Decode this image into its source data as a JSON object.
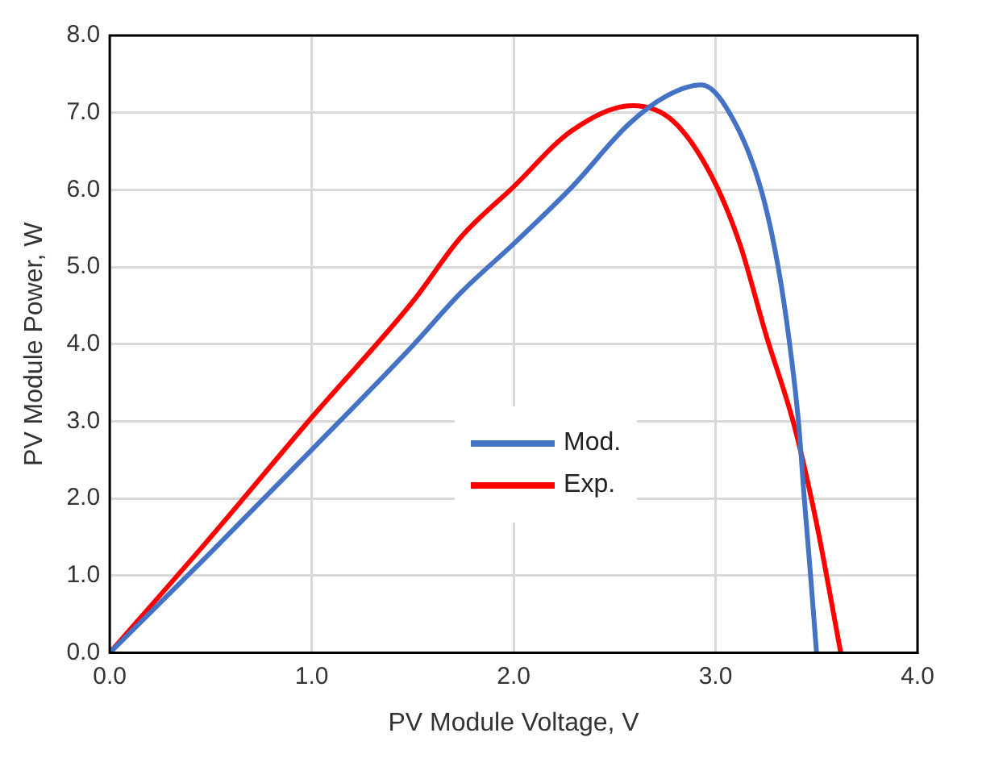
{
  "chart_data": {
    "type": "line",
    "xlabel": "PV Module Voltage, V",
    "ylabel": "PV Module Power, W",
    "xlim": [
      0,
      4
    ],
    "ylim": [
      0,
      8
    ],
    "xticks": [
      {
        "value": 0,
        "label": "0.0"
      },
      {
        "value": 1,
        "label": "1.0"
      },
      {
        "value": 2,
        "label": "2.0"
      },
      {
        "value": 3,
        "label": "3.0"
      },
      {
        "value": 4,
        "label": "4.0"
      }
    ],
    "yticks": [
      {
        "value": 0,
        "label": "0.0"
      },
      {
        "value": 1,
        "label": "1.0"
      },
      {
        "value": 2,
        "label": "2.0"
      },
      {
        "value": 3,
        "label": "3.0"
      },
      {
        "value": 4,
        "label": "4.0"
      },
      {
        "value": 5,
        "label": "5.0"
      },
      {
        "value": 6,
        "label": "6.0"
      },
      {
        "value": 7,
        "label": "7.0"
      },
      {
        "value": 8,
        "label": "8.0"
      }
    ],
    "grid": true,
    "legend": "center",
    "marker": "none",
    "line_style": "solid",
    "series": [
      {
        "name": "Mod.",
        "color": "#4472c4",
        "x": [
          0,
          0.5,
          1,
          1.5,
          1.74,
          2,
          2.29,
          2.57,
          2.76,
          2.93,
          3.1,
          3.23,
          3.31,
          3.365,
          3.41,
          3.44,
          3.47,
          3.5
        ],
        "values": [
          0,
          1.3,
          2.63,
          3.98,
          4.67,
          5.3,
          6.04,
          6.85,
          7.22,
          7.36,
          6.85,
          5.96,
          5.0,
          4.04,
          3.01,
          1.98,
          1.02,
          0
        ]
      },
      {
        "name": "Exp.",
        "color": "#ff0000",
        "x": [
          0,
          0.5,
          1,
          1.5,
          1.74,
          2,
          2.29,
          2.59,
          2.79,
          2.98,
          3.12,
          3.25,
          3.39,
          3.5,
          3.62
        ],
        "values": [
          0,
          1.5,
          3.05,
          4.55,
          5.39,
          6.04,
          6.77,
          7.09,
          6.89,
          6.18,
          5.3,
          4.12,
          2.94,
          1.68,
          0
        ]
      }
    ]
  }
}
